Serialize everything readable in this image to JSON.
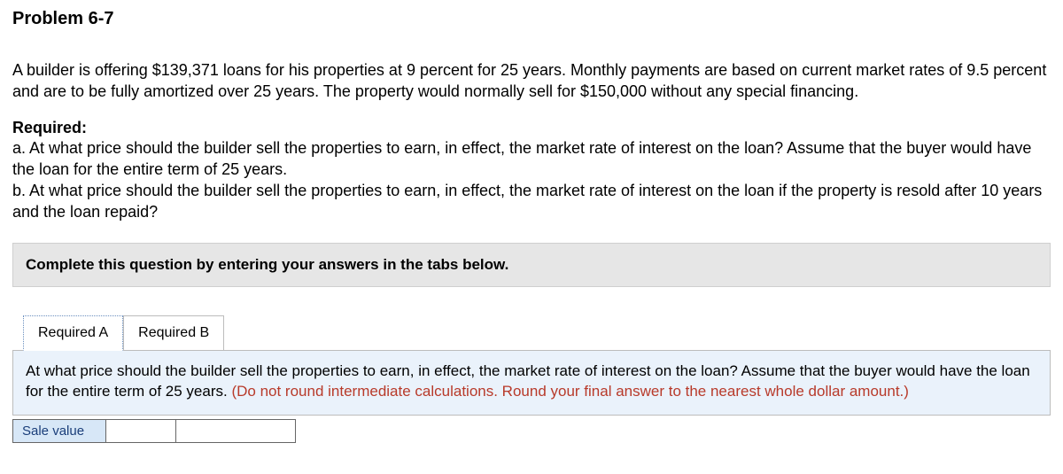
{
  "title": "Problem 6-7",
  "paragraph": "A builder is offering $139,371 loans for his properties at 9 percent for 25 years. Monthly payments are based on current market rates of 9.5 percent and are to be fully amortized over 25 years. The property would normally sell for $150,000 without any special financing.",
  "required_header": "Required:",
  "req_a": "a. At what price should the builder sell the properties to earn, in effect, the market rate of interest on the loan? Assume that the buyer would have the loan for the entire term of 25 years.",
  "req_b": "b. At what price should the builder sell the properties to earn, in effect, the market rate of interest on the loan if the property is resold after 10 years and the loan repaid?",
  "instruction": "Complete this question by entering your answers in the tabs below.",
  "tabs": {
    "a": "Required A",
    "b": "Required B"
  },
  "tab_body": {
    "question": "At what price should the builder sell the properties to earn, in effect, the market rate of interest on the loan? Assume that the buyer would have the loan for the entire term of 25 years. ",
    "hint": "(Do not round intermediate calculations. Round your final answer to the nearest whole dollar amount.)"
  },
  "answer": {
    "label": "Sale value",
    "value": ""
  },
  "colors": {
    "instr_bg": "#e6e6e6",
    "tab_body_bg": "#eaf2fb",
    "hint_color": "#b83a2a",
    "answer_label_bg": "#d7e7f7",
    "answer_label_color": "#1a3e7a"
  }
}
